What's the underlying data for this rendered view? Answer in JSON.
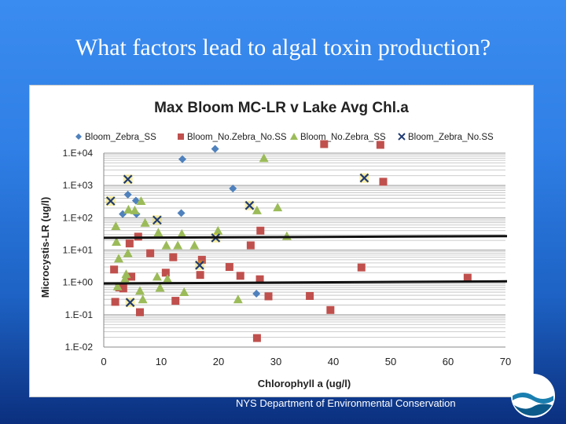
{
  "slide": {
    "title": "What factors lead to algal toxin production?",
    "footer": "NYS Department of Environmental  Conservation"
  },
  "colors": {
    "background": "#2f7fe6",
    "zebra_ss": "#4f81bd",
    "nozebra_noss": "#c0504d",
    "nozebra_ss": "#9bbb59",
    "zebra_noss": "#f2d100"
  },
  "chart_data": {
    "type": "scatter",
    "title": "Max Bloom MC-LR v Lake Avg Chl.a",
    "xlabel": "Chlorophyll a (ug/l)",
    "ylabel": "Microcystis-LR (ug/l)",
    "xlim": [
      0,
      70
    ],
    "x_ticks": [
      "0",
      "10",
      "20",
      "30",
      "40",
      "50",
      "60",
      "70"
    ],
    "y_scale": "log",
    "ylim": [
      0.01,
      10000
    ],
    "y_ticks": [
      "1.E-02",
      "1.E-01",
      "1.E+00",
      "1.E+01",
      "1.E+02",
      "1.E+03",
      "1.E+04"
    ],
    "grid": "horizontal",
    "legend_position": "top",
    "series": [
      {
        "name": "Bloom_Zebra_SS",
        "marker": "diamond",
        "color": "#4f81bd",
        "points": [
          [
            3.3,
            130
          ],
          [
            4.2,
            520
          ],
          [
            5.6,
            340
          ],
          [
            5.7,
            130
          ],
          [
            13.7,
            6500
          ],
          [
            13.5,
            140
          ],
          [
            19.4,
            13500
          ],
          [
            22.5,
            800
          ],
          [
            26.6,
            0.45
          ]
        ]
      },
      {
        "name": "Bloom_No.Zebra_No.SS",
        "marker": "square",
        "color": "#c0504d",
        "points": [
          [
            1.8,
            2.5
          ],
          [
            2.0,
            0.25
          ],
          [
            2.7,
            0.7
          ],
          [
            3.4,
            0.65
          ],
          [
            4.5,
            16
          ],
          [
            4.8,
            1.5
          ],
          [
            6.0,
            26
          ],
          [
            6.3,
            0.12
          ],
          [
            8.1,
            8
          ],
          [
            10.8,
            2
          ],
          [
            12.1,
            6
          ],
          [
            12.5,
            0.27
          ],
          [
            16.8,
            1.7
          ],
          [
            17.1,
            5
          ],
          [
            21.9,
            3
          ],
          [
            23.8,
            1.6
          ],
          [
            25.6,
            14
          ],
          [
            27.2,
            1.25
          ],
          [
            27.3,
            40
          ],
          [
            28.7,
            0.37
          ],
          [
            35.9,
            0.38
          ],
          [
            38.4,
            19000
          ],
          [
            39.5,
            0.14
          ],
          [
            44.9,
            2.9
          ],
          [
            48.2,
            18000
          ],
          [
            48.7,
            1300
          ],
          [
            63.4,
            1.4
          ],
          [
            26.7,
            0.019
          ]
        ]
      },
      {
        "name": "Bloom_No.Zebra_SS",
        "marker": "triangle",
        "color": "#9bbb59",
        "points": [
          [
            2.1,
            55
          ],
          [
            2.2,
            18
          ],
          [
            2.4,
            0.75
          ],
          [
            2.6,
            5.5
          ],
          [
            3.7,
            1.3
          ],
          [
            3.9,
            1.8
          ],
          [
            4.2,
            8
          ],
          [
            4.3,
            180
          ],
          [
            5.4,
            170
          ],
          [
            6.5,
            330
          ],
          [
            6.3,
            0.55
          ],
          [
            6.8,
            0.3
          ],
          [
            7.2,
            70
          ],
          [
            9.3,
            1.5
          ],
          [
            9.5,
            35
          ],
          [
            9.8,
            0.68
          ],
          [
            10.9,
            14
          ],
          [
            11.1,
            1.3
          ],
          [
            12.9,
            14
          ],
          [
            13.6,
            32
          ],
          [
            14.0,
            0.5
          ],
          [
            15.8,
            14
          ],
          [
            19.9,
            40
          ],
          [
            23.4,
            0.3
          ],
          [
            26.7,
            170
          ],
          [
            27.9,
            7000
          ],
          [
            30.3,
            210
          ],
          [
            31.9,
            27
          ]
        ]
      },
      {
        "name": "Bloom_Zebra_No.SS",
        "marker": "x",
        "color": "#f2d100",
        "points": [
          [
            1.2,
            330
          ],
          [
            4.2,
            1550
          ],
          [
            4.6,
            0.24
          ],
          [
            9.3,
            85
          ],
          [
            16.7,
            3.4
          ],
          [
            19.5,
            24
          ],
          [
            25.4,
            240
          ],
          [
            45.4,
            1700
          ]
        ]
      }
    ],
    "reference_lines": [
      {
        "y_start": 24,
        "y_end": 27
      },
      {
        "y_start": 0.92,
        "y_end": 1.08
      }
    ]
  }
}
